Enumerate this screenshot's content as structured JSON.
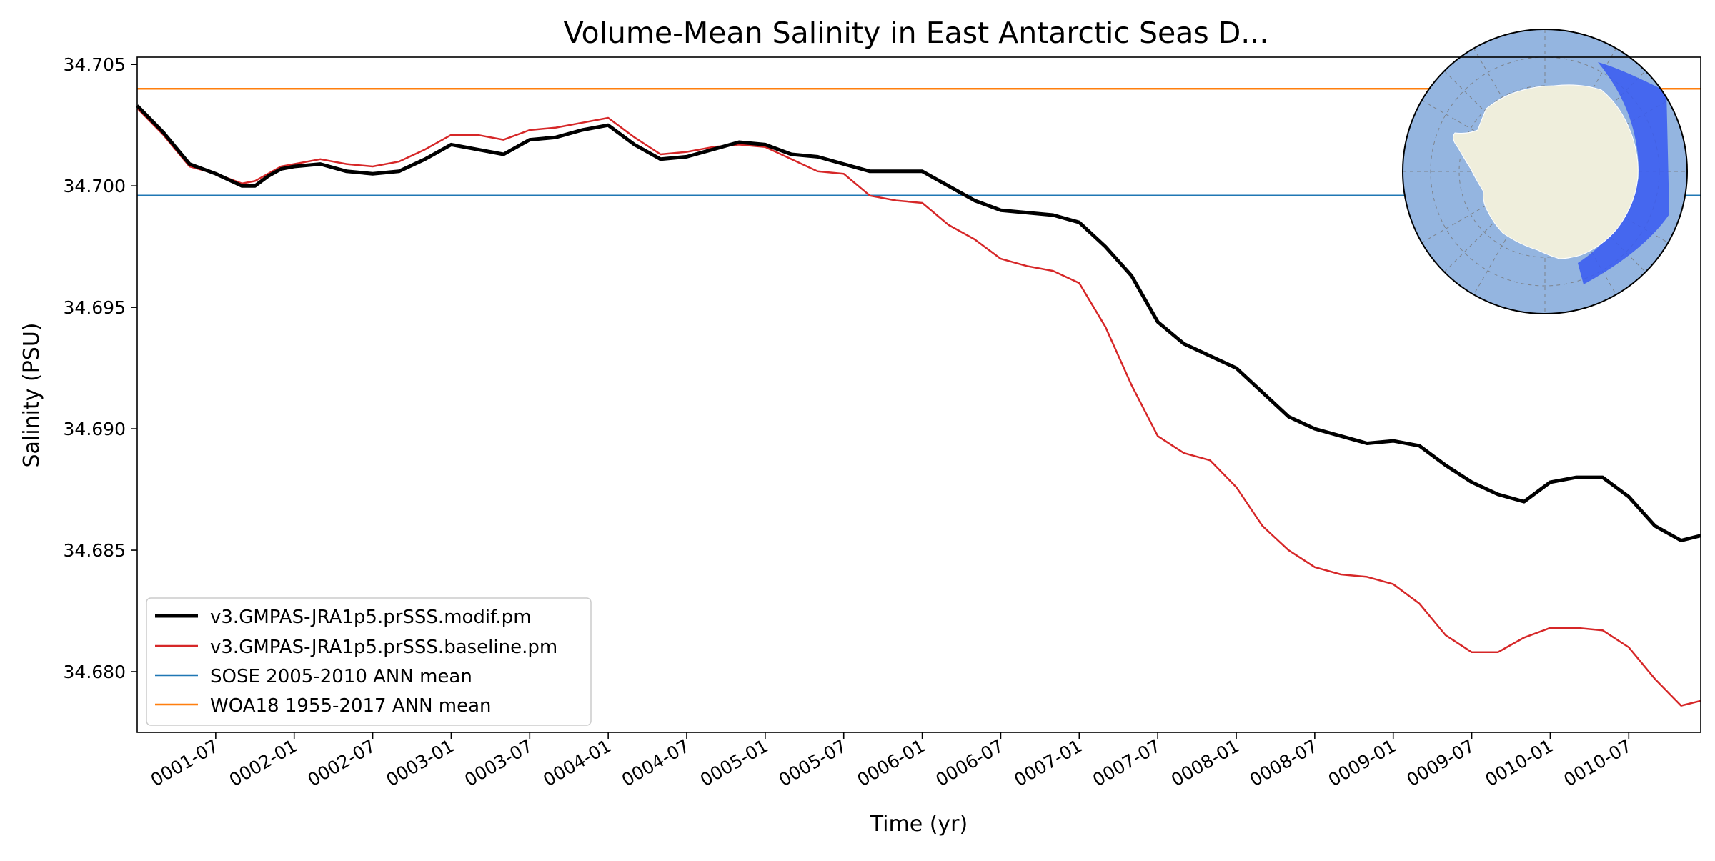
{
  "chart_data": {
    "type": "line",
    "title": "Volume-Mean Salinity in East Antarctic Seas D...",
    "xlabel": "Time (yr)",
    "ylabel": "Salinity (PSU)",
    "xlim": [
      0,
      119.5
    ],
    "ylim": [
      34.6775,
      34.7053
    ],
    "grid": false,
    "legend_position": "lower-left",
    "x_ticks": [
      {
        "month": 6,
        "label": "0001-07"
      },
      {
        "month": 12,
        "label": "0002-01"
      },
      {
        "month": 18,
        "label": "0002-07"
      },
      {
        "month": 24,
        "label": "0003-01"
      },
      {
        "month": 30,
        "label": "0003-07"
      },
      {
        "month": 36,
        "label": "0004-01"
      },
      {
        "month": 42,
        "label": "0004-07"
      },
      {
        "month": 48,
        "label": "0005-01"
      },
      {
        "month": 54,
        "label": "0005-07"
      },
      {
        "month": 60,
        "label": "0006-01"
      },
      {
        "month": 66,
        "label": "0006-07"
      },
      {
        "month": 72,
        "label": "0007-01"
      },
      {
        "month": 78,
        "label": "0007-07"
      },
      {
        "month": 84,
        "label": "0008-01"
      },
      {
        "month": 90,
        "label": "0008-07"
      },
      {
        "month": 96,
        "label": "0009-01"
      },
      {
        "month": 102,
        "label": "0009-07"
      },
      {
        "month": 108,
        "label": "0010-01"
      },
      {
        "month": 114,
        "label": "0010-07"
      }
    ],
    "y_ticks": [
      {
        "value": 34.68,
        "label": "34.680"
      },
      {
        "value": 34.685,
        "label": "34.685"
      },
      {
        "value": 34.69,
        "label": "34.690"
      },
      {
        "value": 34.695,
        "label": "34.695"
      },
      {
        "value": 34.7,
        "label": "34.700"
      },
      {
        "value": 34.705,
        "label": "34.705"
      }
    ],
    "series": [
      {
        "name": "v3.GMPAS-JRA1p5.prSSS.modif.pm",
        "color": "#000000",
        "kind": "line",
        "x": [
          0,
          2,
          4,
          6,
          8,
          9,
          10,
          11,
          12,
          14,
          16,
          18,
          20,
          22,
          24,
          26,
          28,
          30,
          32,
          34,
          36,
          38,
          40,
          42,
          44,
          46,
          48,
          50,
          52,
          54,
          56,
          58,
          60,
          62,
          64,
          66,
          68,
          70,
          72,
          74,
          76,
          78,
          80,
          82,
          84,
          86,
          88,
          90,
          92,
          94,
          96,
          98,
          100,
          102,
          104,
          106,
          108,
          110,
          112,
          114,
          116,
          118,
          119.5
        ],
        "values": [
          34.7033,
          34.7022,
          34.7009,
          34.7005,
          34.7,
          34.7,
          34.7004,
          34.7007,
          34.7008,
          34.7009,
          34.7006,
          34.7005,
          34.7006,
          34.7011,
          34.7017,
          34.7015,
          34.7013,
          34.7019,
          34.702,
          34.7023,
          34.7025,
          34.7017,
          34.7011,
          34.7012,
          34.7015,
          34.7018,
          34.7017,
          34.7013,
          34.7012,
          34.7009,
          34.7006,
          34.7006,
          34.7006,
          34.7,
          34.6994,
          34.699,
          34.6989,
          34.6988,
          34.6985,
          34.6975,
          34.6963,
          34.6944,
          34.6935,
          34.693,
          34.6925,
          34.6915,
          34.6905,
          34.69,
          34.6897,
          34.6894,
          34.6895,
          34.6893,
          34.6885,
          34.6878,
          34.6873,
          34.687,
          34.6878,
          34.688,
          34.688,
          34.6872,
          34.686,
          34.6854,
          34.6856
        ]
      },
      {
        "name": "v3.GMPAS-JRA1p5.prSSS.baseline.pm",
        "color": "#d62728",
        "kind": "line",
        "x": [
          0,
          2,
          4,
          6,
          8,
          9,
          10,
          11,
          12,
          14,
          16,
          18,
          20,
          22,
          24,
          26,
          28,
          30,
          32,
          34,
          36,
          38,
          40,
          42,
          44,
          46,
          48,
          50,
          52,
          54,
          56,
          58,
          60,
          62,
          64,
          66,
          68,
          70,
          72,
          74,
          76,
          78,
          80,
          82,
          84,
          86,
          88,
          90,
          92,
          94,
          96,
          98,
          100,
          102,
          104,
          106,
          108,
          110,
          112,
          114,
          116,
          118,
          119.5
        ],
        "values": [
          34.7032,
          34.7021,
          34.7008,
          34.7005,
          34.7001,
          34.7002,
          34.7005,
          34.7008,
          34.7009,
          34.7011,
          34.7009,
          34.7008,
          34.701,
          34.7015,
          34.7021,
          34.7021,
          34.7019,
          34.7023,
          34.7024,
          34.7026,
          34.7028,
          34.702,
          34.7013,
          34.7014,
          34.7016,
          34.7017,
          34.7016,
          34.7011,
          34.7006,
          34.7005,
          34.6996,
          34.6994,
          34.6993,
          34.6984,
          34.6978,
          34.697,
          34.6967,
          34.6965,
          34.696,
          34.6942,
          34.6918,
          34.6897,
          34.689,
          34.6887,
          34.6876,
          34.686,
          34.685,
          34.6843,
          34.684,
          34.6839,
          34.6836,
          34.6828,
          34.6815,
          34.6808,
          34.6808,
          34.6814,
          34.6818,
          34.6818,
          34.6817,
          34.681,
          34.6797,
          34.6786,
          34.6788
        ]
      },
      {
        "name": "SOSE 2005-2010 ANN mean",
        "color": "#1f77b4",
        "kind": "hline",
        "value": 34.6996
      },
      {
        "name": "WOA18 1955-2017 ANN mean",
        "color": "#ff7f0e",
        "kind": "hline",
        "value": 34.704
      }
    ],
    "inset_map": {
      "description_name": "south-polar-region-map",
      "ocean_color": "#94b5e0",
      "land_color": "#efeedc",
      "region_color": "#3a5cf0"
    }
  }
}
